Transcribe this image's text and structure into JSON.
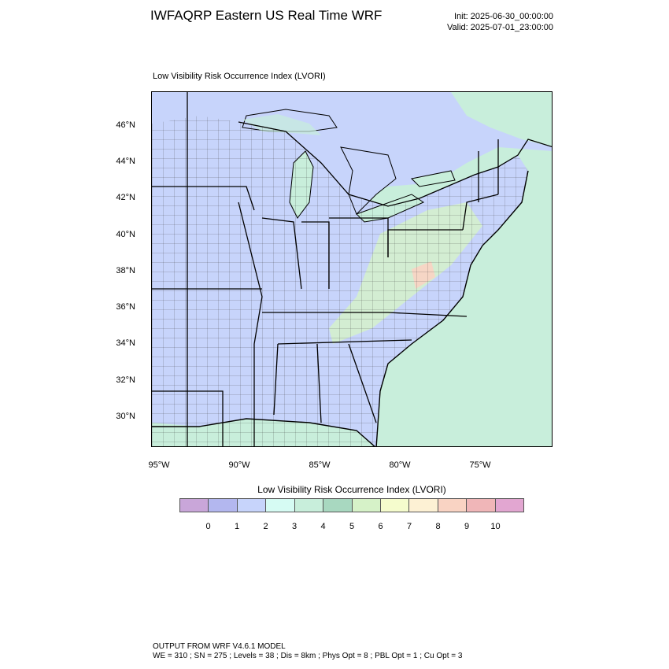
{
  "header": {
    "title": "IWFAQRP Eastern US Real Time WRF",
    "init": "Init: 2025-06-30_00:00:00",
    "valid": "Valid: 2025-07-01_23:00:00"
  },
  "plot": {
    "title": "Low Visibility Risk Occurrence Index   (LVORI)"
  },
  "axes": {
    "lat_labels": [
      "46°N",
      "44°N",
      "42°N",
      "40°N",
      "38°N",
      "36°N",
      "34°N",
      "32°N",
      "30°N"
    ],
    "lon_labels": [
      "95°W",
      "90°W",
      "85°W",
      "80°W",
      "75°W"
    ]
  },
  "colorbar": {
    "title": "Low Visibility Risk Occurrence Index  (LVORI)",
    "labels": [
      "0",
      "1",
      "2",
      "3",
      "4",
      "5",
      "6",
      "7",
      "8",
      "9",
      "10"
    ],
    "colors": [
      "#c9a6d9",
      "#b3b7ef",
      "#c7d4fb",
      "#d6fbf3",
      "#c8eedb",
      "#a8d8c0",
      "#d6f2c8",
      "#f5fccd",
      "#fdf1d4",
      "#f9d3c3",
      "#f0b6b8",
      "#e2a6d1"
    ]
  },
  "footer": {
    "line1": "OUTPUT FROM WRF V4.6.1 MODEL",
    "line2": "WE = 310 ; SN = 275 ; Levels = 38 ; Dis = 8km ; Phys Opt = 8 ; PBL Opt = 1 ; Cu Opt = 3"
  }
}
